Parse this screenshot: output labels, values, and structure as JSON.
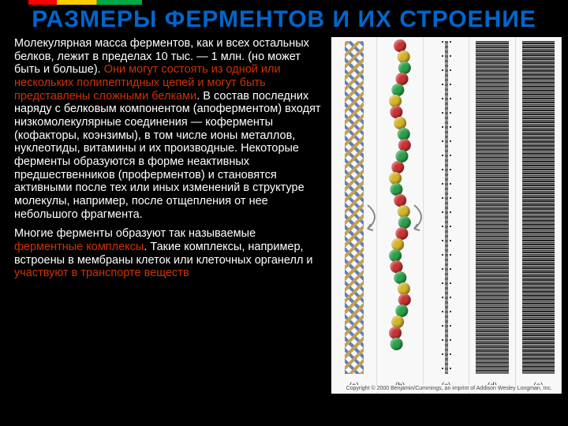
{
  "title": "РАЗМЕРЫ ФЕРМЕНТОВ И ИХ СТРОЕНИЕ",
  "para1_a": "Молекулярная масса ферментов, как и всех остальных белков, лежит в пределах 10 тыс. — 1 млн. (но может быть и больше). ",
  "para1_hl": "Они могут состоять из одной или нескольких полипептидных цепей и могут быть представлены сложными белками",
  "para1_b": ". В состав последних наряду с белковым компонентом (апоферментом) входят низкомолекулярные соединения — коферменты (кофакторы, коэнзимы), в том числе ионы металлов, нуклеотиды, витамины и их производные. Некоторые ферменты образуются в форме неактивных предшественников (проферментов) и становятся активными после тех или иных изменений в структуре молекулы, например, после отщепления от нее небольшого фрагмента.",
  "para2_a": "Многие ферменты образуют так называемые ",
  "para2_hl": "ферментные комплексы",
  "para2_b": ". Такие комплексы, например, встроены в мембраны клеток или клеточных органелл и ",
  "para2_hl2": "участвуют в транспорте веществ",
  "panels": [
    "(a)",
    "(b)",
    "(c)",
    "(d)",
    "(e)"
  ],
  "copyright": "Copyright © 2000 Benjamin/Cummings, an imprint of Addison Wesley Longman, Inc.",
  "bead_colors": [
    "#c83232",
    "#d4b428",
    "#2aa04a",
    "#c83232",
    "#2aa04a",
    "#d4b428",
    "#c83232",
    "#d4b428",
    "#2aa04a",
    "#c83232",
    "#2aa04a",
    "#c83232",
    "#d4b428",
    "#2aa04a",
    "#c83232",
    "#d4b428",
    "#2aa04a",
    "#c83232",
    "#d4b428",
    "#2aa04a",
    "#c83232",
    "#2aa04a",
    "#d4b428",
    "#c83232",
    "#2aa04a",
    "#d4b428",
    "#c83232",
    "#2aa04a"
  ]
}
